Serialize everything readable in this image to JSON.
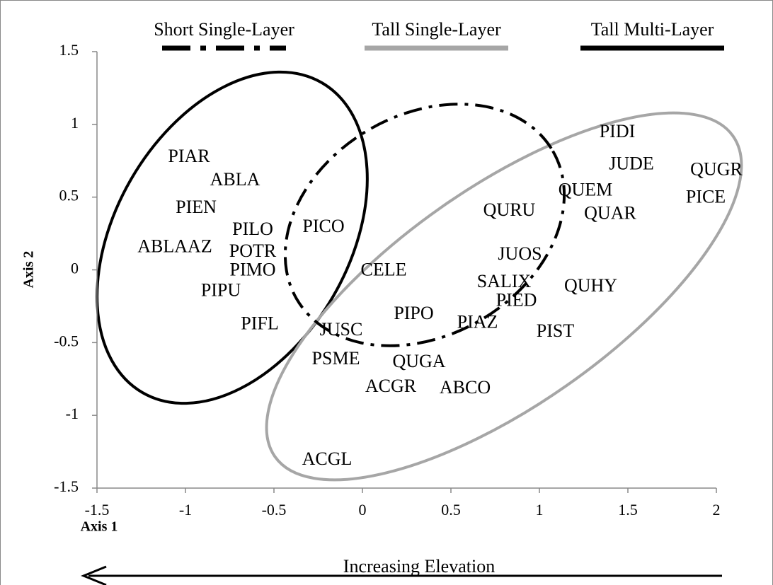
{
  "chart_data": {
    "type": "scatter",
    "x_label": "Axis 1",
    "y_label": "Axis 2",
    "annotation": "Increasing Elevation",
    "labels": [
      "PIAR",
      "ABLA",
      "PIEN",
      "PILO",
      "PICO",
      "ABLAAZ",
      "POTR",
      "PIMO",
      "PIPU",
      "PIFL",
      "CELE",
      "JUOS",
      "SALIX",
      "PIED",
      "PIAZ",
      "PIPO",
      "JUSC",
      "PSME",
      "QUGA",
      "ACGR",
      "ABCO",
      "ACGL",
      "QURU",
      "QUEM",
      "QUAR",
      "QUHY",
      "PIST",
      "PIDI",
      "JUDE",
      "QUGR",
      "PICE"
    ],
    "x": [
      -0.98,
      -0.72,
      -0.94,
      -0.62,
      -0.22,
      -1.06,
      -0.62,
      -0.62,
      -0.8,
      -0.58,
      0.12,
      0.89,
      0.8,
      0.87,
      0.65,
      0.29,
      -0.12,
      -0.15,
      0.32,
      0.16,
      0.58,
      -0.2,
      0.83,
      1.26,
      1.4,
      1.29,
      1.09,
      1.44,
      1.52,
      2.0,
      1.94
    ],
    "y": [
      0.77,
      0.61,
      0.42,
      0.27,
      0.29,
      0.15,
      0.12,
      -0.01,
      -0.15,
      -0.38,
      -0.01,
      0.1,
      -0.09,
      -0.22,
      -0.37,
      -0.31,
      -0.42,
      -0.62,
      -0.64,
      -0.81,
      -0.82,
      -1.31,
      0.4,
      0.54,
      0.38,
      -0.12,
      -0.43,
      0.94,
      0.72,
      0.68,
      0.49
    ],
    "series": [
      {
        "name": "Short Single-Layer",
        "color": "#000000",
        "dash": "dash-dot"
      },
      {
        "name": "Tall Single-Layer",
        "color": "#a6a6a6",
        "dash": "solid"
      },
      {
        "name": "Tall Multi-Layer",
        "color": "#000000",
        "dash": "solid"
      }
    ],
    "xlim": [
      -1.5,
      2
    ],
    "ylim": [
      -1.5,
      1.5
    ],
    "xticks": [
      -1.5,
      -1,
      -0.5,
      0,
      0.5,
      1,
      1.5,
      2
    ],
    "yticks": [
      -1.5,
      -1,
      -0.5,
      0,
      0.5,
      1,
      1.5
    ]
  }
}
